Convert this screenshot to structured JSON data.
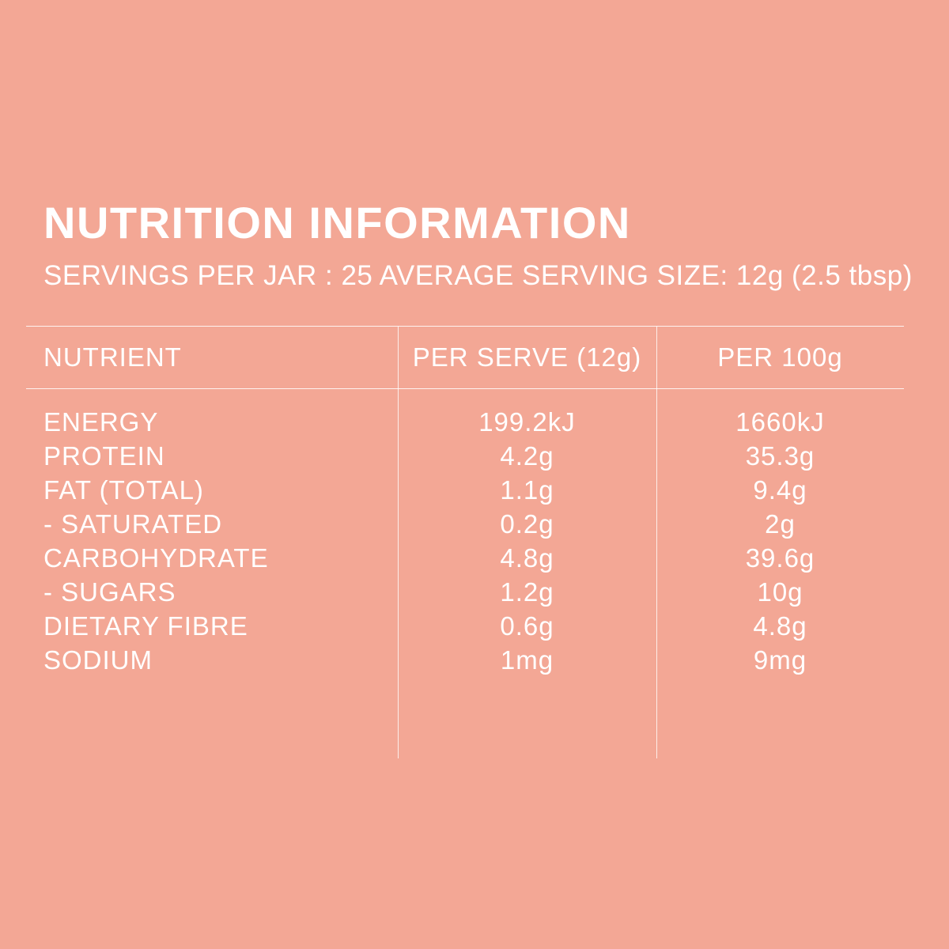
{
  "colors": {
    "background": "#F3A795",
    "text": "#FFFFFF",
    "rule_lines": "#FFFFFF"
  },
  "header": {
    "title": "NUTRITION INFORMATION",
    "subtitle": "SERVINGS PER JAR : 25 AVERAGE SERVING SIZE: 12g (2.5 tbsp)"
  },
  "table": {
    "columns": [
      "NUTRIENT",
      "PER SERVE (12g)",
      "PER 100g"
    ],
    "rows": [
      {
        "nutrient": "ENERGY",
        "per_serve": "199.2kJ",
        "per_100g": "1660kJ"
      },
      {
        "nutrient": "PROTEIN",
        "per_serve": "4.2g",
        "per_100g": "35.3g"
      },
      {
        "nutrient": "FAT (TOTAL)",
        "per_serve": "1.1g",
        "per_100g": "9.4g"
      },
      {
        "nutrient": "- SATURATED",
        "per_serve": "0.2g",
        "per_100g": "2g"
      },
      {
        "nutrient": "CARBOHYDRATE",
        "per_serve": "4.8g",
        "per_100g": "39.6g"
      },
      {
        "nutrient": "- SUGARS",
        "per_serve": "1.2g",
        "per_100g": "10g"
      },
      {
        "nutrient": "DIETARY FIBRE",
        "per_serve": "0.6g",
        "per_100g": "4.8g"
      },
      {
        "nutrient": "SODIUM",
        "per_serve": "1mg",
        "per_100g": "9mg"
      }
    ]
  }
}
